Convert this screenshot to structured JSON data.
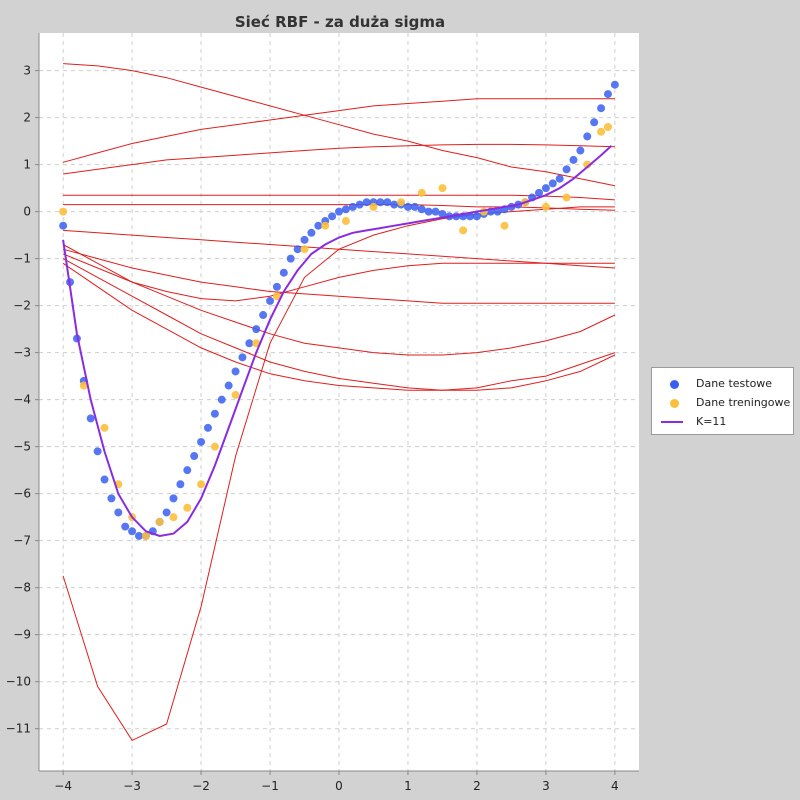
{
  "chart_data": {
    "type": "scatter",
    "title": "Sieć RBF - za duża sigma",
    "xlabel": "",
    "ylabel": "",
    "xlim": [
      -4.35,
      4.35
    ],
    "ylim": [
      -11.9,
      3.8
    ],
    "x_ticks": [
      -4,
      -3,
      -2,
      -1,
      0,
      1,
      2,
      3,
      4
    ],
    "y_ticks": [
      3,
      2,
      1,
      0,
      -1,
      -2,
      -3,
      -4,
      -5,
      -6,
      -7,
      -8,
      -9,
      -10,
      -11
    ],
    "x_tick_labels": [
      "−4",
      "−3",
      "−2",
      "−1",
      "0",
      "1",
      "2",
      "3",
      "4"
    ],
    "y_tick_labels": [
      "3",
      "2",
      "1",
      "0",
      "−1",
      "−2",
      "−3",
      "−4",
      "−5",
      "−6",
      "−7",
      "−8",
      "−9",
      "−10",
      "−11"
    ],
    "grid": true,
    "legend_position": "right",
    "series": [
      {
        "name": "Dane testowe",
        "kind": "scatter",
        "color": "#3a5ff0",
        "x": [
          -4.0,
          -3.9,
          -3.8,
          -3.7,
          -3.6,
          -3.5,
          -3.4,
          -3.3,
          -3.2,
          -3.1,
          -3.0,
          -2.9,
          -2.8,
          -2.7,
          -2.6,
          -2.5,
          -2.4,
          -2.3,
          -2.2,
          -2.1,
          -2.0,
          -1.9,
          -1.8,
          -1.7,
          -1.6,
          -1.5,
          -1.4,
          -1.3,
          -1.2,
          -1.1,
          -1.0,
          -0.9,
          -0.8,
          -0.7,
          -0.6,
          -0.5,
          -0.4,
          -0.3,
          -0.2,
          -0.1,
          0.0,
          0.1,
          0.2,
          0.3,
          0.4,
          0.5,
          0.6,
          0.7,
          0.8,
          0.9,
          1.0,
          1.1,
          1.2,
          1.3,
          1.4,
          1.5,
          1.6,
          1.7,
          1.8,
          1.9,
          2.0,
          2.1,
          2.2,
          2.3,
          2.4,
          2.5,
          2.6,
          2.7,
          2.8,
          2.9,
          3.0,
          3.1,
          3.2,
          3.3,
          3.4,
          3.5,
          3.6,
          3.7,
          3.8,
          3.9,
          4.0
        ],
        "y": [
          -0.3,
          -1.5,
          -2.7,
          -3.6,
          -4.4,
          -5.1,
          -5.7,
          -6.1,
          -6.4,
          -6.7,
          -6.8,
          -6.9,
          -6.9,
          -6.8,
          -6.6,
          -6.4,
          -6.1,
          -5.8,
          -5.5,
          -5.2,
          -4.9,
          -4.6,
          -4.3,
          -4.0,
          -3.7,
          -3.4,
          -3.1,
          -2.8,
          -2.5,
          -2.2,
          -1.9,
          -1.6,
          -1.3,
          -1.0,
          -0.8,
          -0.6,
          -0.45,
          -0.3,
          -0.2,
          -0.1,
          0.0,
          0.05,
          0.1,
          0.15,
          0.2,
          0.2,
          0.2,
          0.2,
          0.15,
          0.15,
          0.1,
          0.1,
          0.05,
          0.0,
          0.0,
          -0.05,
          -0.1,
          -0.1,
          -0.1,
          -0.1,
          -0.1,
          -0.05,
          0.0,
          0.0,
          0.05,
          0.1,
          0.15,
          0.2,
          0.3,
          0.4,
          0.5,
          0.6,
          0.7,
          0.9,
          1.1,
          1.3,
          1.6,
          1.9,
          2.2,
          2.5,
          2.7
        ]
      },
      {
        "name": "Dane treningowe",
        "kind": "scatter",
        "color": "#fbbf3c",
        "x": [
          -4.0,
          -3.7,
          -3.4,
          -3.2,
          -3.0,
          -2.8,
          -2.6,
          -2.4,
          -2.2,
          -2.0,
          -1.8,
          -1.5,
          -1.2,
          -0.9,
          -0.5,
          -0.2,
          0.1,
          0.5,
          0.9,
          1.2,
          1.5,
          1.8,
          2.1,
          2.4,
          2.7,
          3.0,
          3.3,
          3.6,
          3.8,
          3.9
        ],
        "y": [
          0.0,
          -3.7,
          -4.6,
          -5.8,
          -6.5,
          -6.9,
          -6.6,
          -6.5,
          -6.3,
          -5.8,
          -5.0,
          -3.9,
          -2.8,
          -1.8,
          -0.8,
          -0.3,
          -0.2,
          0.1,
          0.2,
          0.4,
          0.5,
          -0.4,
          0.0,
          -0.3,
          0.2,
          0.1,
          0.3,
          1.0,
          1.7,
          1.8
        ]
      },
      {
        "name": "K=11",
        "kind": "line",
        "color": "#8a2be2",
        "x": [
          -4.0,
          -3.8,
          -3.6,
          -3.4,
          -3.2,
          -3.0,
          -2.8,
          -2.6,
          -2.4,
          -2.2,
          -2.0,
          -1.8,
          -1.6,
          -1.4,
          -1.2,
          -1.0,
          -0.8,
          -0.6,
          -0.4,
          -0.2,
          0.0,
          0.2,
          0.4,
          0.6,
          0.8,
          1.0,
          1.2,
          1.4,
          1.6,
          1.8,
          2.0,
          2.2,
          2.4,
          2.6,
          2.8,
          3.0,
          3.2,
          3.4,
          3.6,
          3.8,
          3.95
        ],
        "y": [
          -0.6,
          -2.6,
          -4.0,
          -5.1,
          -6.0,
          -6.5,
          -6.8,
          -6.9,
          -6.85,
          -6.6,
          -6.1,
          -5.4,
          -4.6,
          -3.8,
          -3.0,
          -2.3,
          -1.7,
          -1.25,
          -0.9,
          -0.7,
          -0.55,
          -0.45,
          -0.4,
          -0.35,
          -0.3,
          -0.25,
          -0.2,
          -0.15,
          -0.1,
          -0.05,
          0.0,
          0.05,
          0.1,
          0.15,
          0.25,
          0.35,
          0.5,
          0.7,
          0.95,
          1.2,
          1.4
        ]
      }
    ],
    "basis_curves": {
      "color": "#e01e1e",
      "x": [
        -4.0,
        -3.5,
        -3.0,
        -2.5,
        -2.0,
        -1.5,
        -1.0,
        -0.5,
        0.0,
        0.5,
        1.0,
        1.5,
        2.0,
        2.5,
        3.0,
        3.5,
        4.0
      ],
      "curves": [
        [
          3.15,
          3.1,
          3.0,
          2.85,
          2.65,
          2.45,
          2.25,
          2.05,
          1.85,
          1.65,
          1.5,
          1.3,
          1.15,
          0.95,
          0.85,
          0.7,
          0.55
        ],
        [
          1.05,
          1.25,
          1.45,
          1.6,
          1.75,
          1.85,
          1.95,
          2.05,
          2.15,
          2.25,
          2.3,
          2.35,
          2.4,
          2.4,
          2.4,
          2.4,
          2.4
        ],
        [
          0.8,
          0.9,
          1.0,
          1.1,
          1.15,
          1.2,
          1.25,
          1.3,
          1.35,
          1.38,
          1.4,
          1.42,
          1.43,
          1.43,
          1.42,
          1.4,
          1.38
        ],
        [
          0.35,
          0.35,
          0.35,
          0.35,
          0.35,
          0.35,
          0.35,
          0.35,
          0.35,
          0.35,
          0.35,
          0.35,
          0.35,
          0.35,
          0.33,
          0.3,
          0.25
        ],
        [
          0.15,
          0.15,
          0.15,
          0.15,
          0.15,
          0.15,
          0.15,
          0.15,
          0.15,
          0.15,
          0.15,
          0.13,
          0.1,
          0.1,
          0.08,
          0.05,
          0.03
        ],
        [
          -0.4,
          -0.45,
          -0.5,
          -0.55,
          -0.6,
          -0.65,
          -0.7,
          -0.75,
          -0.8,
          -0.85,
          -0.9,
          -0.95,
          -1.0,
          -1.05,
          -1.1,
          -1.15,
          -1.2
        ],
        [
          -0.8,
          -1.0,
          -1.2,
          -1.35,
          -1.5,
          -1.6,
          -1.7,
          -1.75,
          -1.8,
          -1.85,
          -1.9,
          -1.95,
          -1.95,
          -1.95,
          -1.95,
          -1.95,
          -1.95
        ],
        [
          -0.9,
          -1.2,
          -1.5,
          -1.7,
          -1.85,
          -1.9,
          -1.8,
          -1.6,
          -1.4,
          -1.25,
          -1.15,
          -1.1,
          -1.1,
          -1.1,
          -1.1,
          -1.1,
          -1.1
        ],
        [
          -1.0,
          -1.4,
          -1.8,
          -2.2,
          -2.6,
          -2.9,
          -3.2,
          -3.4,
          -3.55,
          -3.65,
          -3.75,
          -3.8,
          -3.8,
          -3.75,
          -3.6,
          -3.4,
          -3.05
        ],
        [
          -1.1,
          -1.6,
          -2.1,
          -2.5,
          -2.9,
          -3.2,
          -3.45,
          -3.6,
          -3.7,
          -3.75,
          -3.8,
          -3.8,
          -3.75,
          -3.6,
          -3.5,
          -3.25,
          -3.0
        ],
        [
          -0.7,
          -1.1,
          -1.5,
          -1.8,
          -2.1,
          -2.35,
          -2.6,
          -2.8,
          -2.9,
          -3.0,
          -3.05,
          -3.05,
          -3.0,
          -2.9,
          -2.75,
          -2.55,
          -2.2
        ],
        [
          -7.75,
          -10.1,
          -11.25,
          -10.9,
          -8.4,
          -5.2,
          -2.8,
          -1.4,
          -0.8,
          -0.5,
          -0.3,
          -0.15,
          -0.05,
          0.0,
          0.05,
          0.1,
          0.1
        ]
      ]
    }
  }
}
